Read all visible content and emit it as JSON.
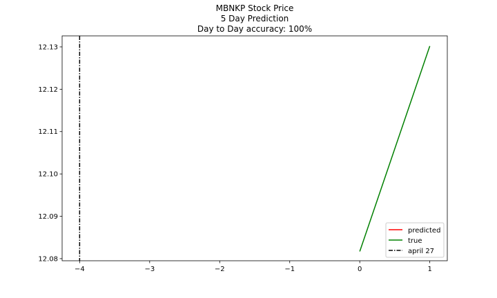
{
  "chart_data": {
    "type": "line",
    "title_lines": [
      "MBNKP Stock Price",
      "5 Day Prediction",
      "Day to Day accuracy: 100%"
    ],
    "xlabel": "",
    "ylabel": "",
    "xlim": [
      -4.25,
      1.25
    ],
    "ylim": [
      12.0795,
      12.1326
    ],
    "x_ticks": [
      -4,
      -3,
      -2,
      -1,
      0,
      1
    ],
    "x_tick_labels": [
      "−4",
      "−3",
      "−2",
      "−1",
      "0",
      "1"
    ],
    "y_ticks": [
      12.08,
      12.09,
      12.1,
      12.11,
      12.12,
      12.13
    ],
    "y_tick_labels": [
      "12.08",
      "12.09",
      "12.10",
      "12.11",
      "12.12",
      "12.13"
    ],
    "grid": false,
    "legend_position": "lower-right",
    "series": [
      {
        "name": "predicted",
        "color": "#ff0000",
        "style": "solid",
        "x": [],
        "y": []
      },
      {
        "name": "true",
        "color": "#008000",
        "style": "solid",
        "x": [
          0,
          1
        ],
        "y": [
          12.0817,
          12.1302
        ]
      }
    ],
    "vlines": [
      {
        "name": "april 27",
        "x": -4,
        "color": "#000000",
        "style": "dashdot"
      }
    ]
  }
}
